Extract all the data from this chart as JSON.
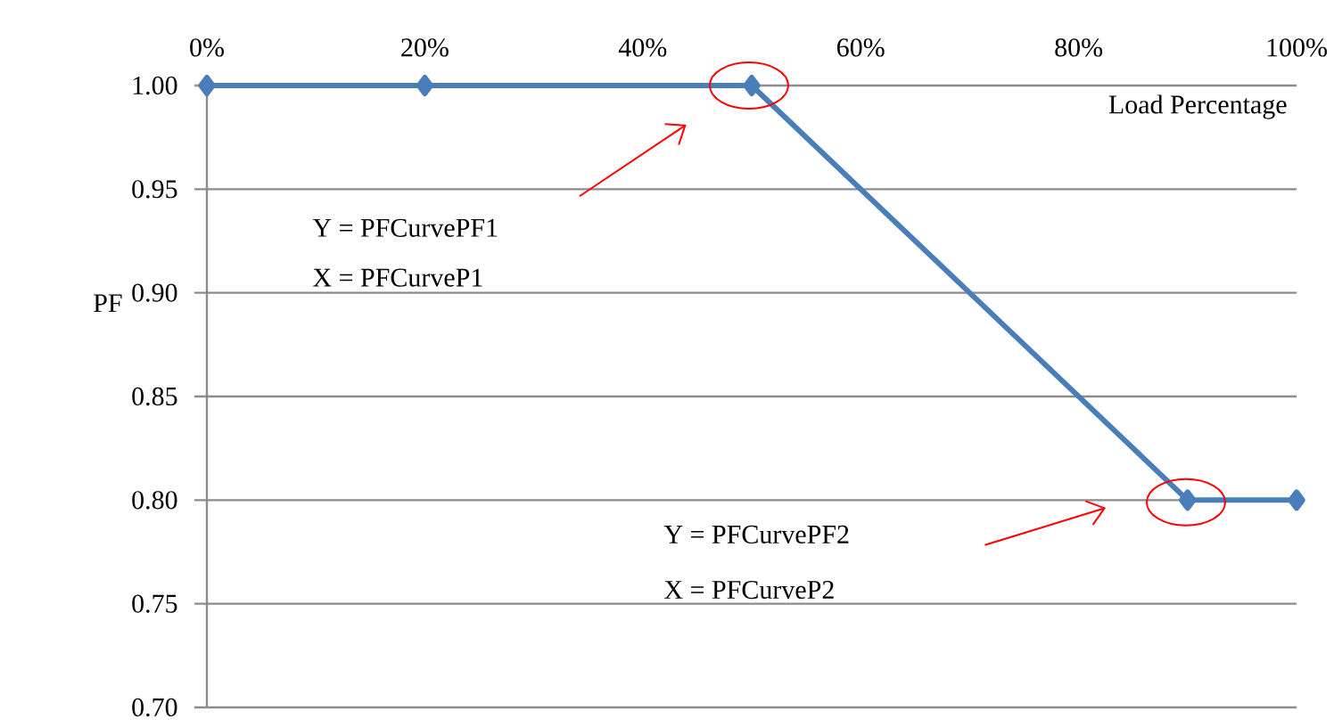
{
  "chart_data": {
    "type": "line",
    "xlabel": "Load Percentage",
    "ylabel": "PF",
    "x": [
      0,
      20,
      50,
      90,
      100
    ],
    "series": [
      {
        "color": "#4a7ebb",
        "values": [
          1.0,
          1.0,
          1.0,
          0.8,
          0.8
        ]
      }
    ],
    "xlim": [
      0,
      100
    ],
    "ylim": [
      0.7,
      1.0
    ],
    "xticks": [
      {
        "value": 0,
        "label": "0%"
      },
      {
        "value": 20,
        "label": "20%"
      },
      {
        "value": 40,
        "label": "40%"
      },
      {
        "value": 60,
        "label": "60%"
      },
      {
        "value": 80,
        "label": "80%"
      },
      {
        "value": 100,
        "label": "100%"
      }
    ],
    "yticks": [
      {
        "value": 0.7,
        "label": "0.70"
      },
      {
        "value": 0.75,
        "label": "0.75"
      },
      {
        "value": 0.8,
        "label": "0.80"
      },
      {
        "value": 0.85,
        "label": "0.85"
      },
      {
        "value": 0.9,
        "label": "0.90"
      },
      {
        "value": 0.95,
        "label": "0.95"
      },
      {
        "value": 1.0,
        "label": "1.00"
      }
    ],
    "grid": "y",
    "marker": "diamond",
    "line_style": "solid",
    "annotations": [
      "Y = PFCurvePF1",
      "X = PFCurveP1",
      "Y = PFCurvePF2",
      "X = PFCurveP2"
    ]
  }
}
